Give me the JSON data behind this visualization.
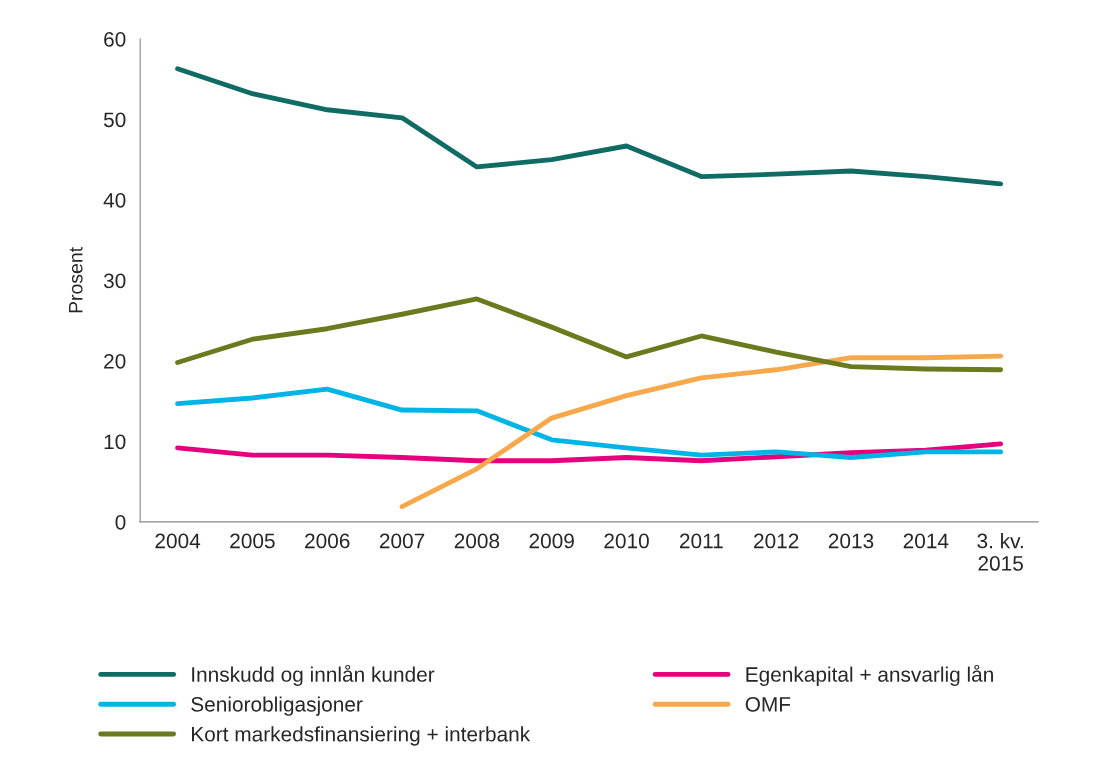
{
  "chart_data": {
    "type": "line",
    "ylabel": "Prosent",
    "categories": [
      "2004",
      "2005",
      "2006",
      "2007",
      "2008",
      "2009",
      "2010",
      "2011",
      "2012",
      "2013",
      "2014",
      "3. kv.\n2015"
    ],
    "series": [
      {
        "name": "Innskudd og innlån kunder",
        "color": "#0f6b63",
        "values": [
          56.3,
          53.2,
          51.2,
          50.2,
          44.1,
          45.0,
          46.7,
          42.9,
          43.2,
          43.6,
          42.9,
          42.0
        ]
      },
      {
        "name": "Egenkapital + ansvarlig lån",
        "color": "#e6007e",
        "values": [
          9.2,
          8.3,
          8.3,
          8.0,
          7.6,
          7.6,
          8.0,
          7.6,
          8.1,
          8.6,
          8.9,
          9.7
        ]
      },
      {
        "name": "Seniorobligasjoner",
        "color": "#00b4e6",
        "values": [
          14.7,
          15.4,
          16.5,
          13.9,
          13.8,
          10.2,
          9.2,
          8.3,
          8.7,
          8.0,
          8.7,
          8.7
        ]
      },
      {
        "name": "OMF",
        "color": "#f7a84a",
        "values": [
          null,
          null,
          null,
          1.9,
          6.6,
          12.9,
          15.7,
          17.9,
          18.9,
          20.4,
          20.4,
          20.6
        ]
      },
      {
        "name": "Kort markedsfinansiering + interbank",
        "color": "#6b7a1f",
        "values": [
          19.8,
          22.7,
          24.0,
          25.8,
          27.7,
          24.2,
          20.5,
          23.1,
          21.1,
          19.3,
          19.0,
          18.9
        ]
      }
    ],
    "ylim": [
      0,
      60
    ],
    "yticks": [
      0,
      10,
      20,
      30,
      40,
      50,
      60
    ],
    "grid": false,
    "legend": "bottom",
    "marker": "none",
    "line_style": "solid"
  }
}
